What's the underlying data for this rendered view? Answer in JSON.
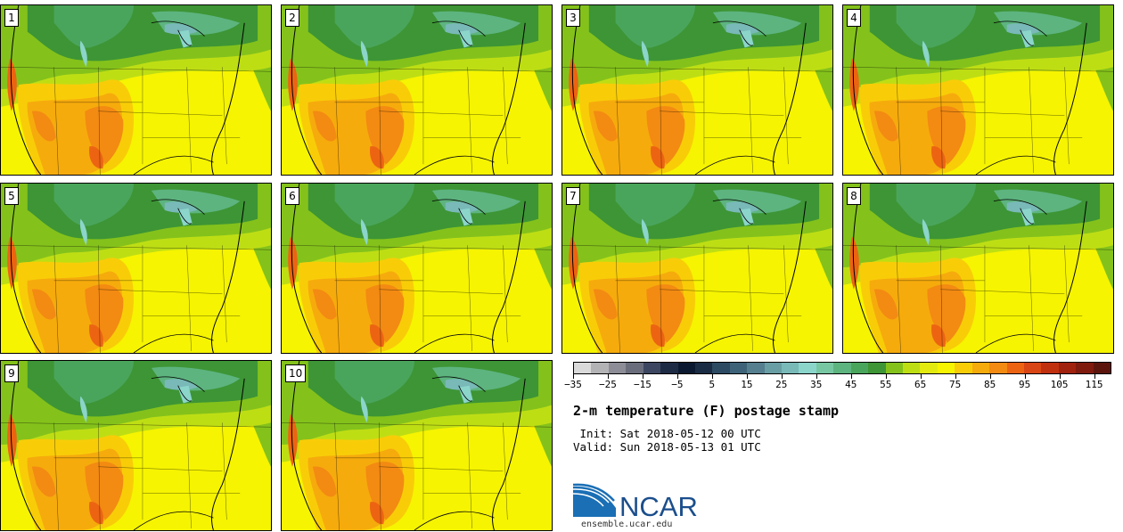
{
  "panels": [
    {
      "label": "1"
    },
    {
      "label": "2"
    },
    {
      "label": "3"
    },
    {
      "label": "4"
    },
    {
      "label": "5"
    },
    {
      "label": "6"
    },
    {
      "label": "7"
    },
    {
      "label": "8"
    },
    {
      "label": "9"
    },
    {
      "label": "10"
    }
  ],
  "legend": {
    "colors": [
      "#dadadb",
      "#b3b3b6",
      "#8c8d96",
      "#6a6e7c",
      "#3c4660",
      "#1e2b45",
      "#0b1930",
      "#1a2c44",
      "#2d4a63",
      "#3e6378",
      "#557f8f",
      "#6a9ea5",
      "#79b9b8",
      "#8bd5cb",
      "#77c8a2",
      "#5db47f",
      "#4aa55c",
      "#3d9535",
      "#84c21b",
      "#bede14",
      "#e2ea10",
      "#f6f400",
      "#f8cd08",
      "#f6ab0c",
      "#f38a12",
      "#ec6412",
      "#d94514",
      "#c0300f",
      "#9f210e",
      "#7f1a0e",
      "#5c150c"
    ],
    "tick_labels": [
      "−35",
      "−25",
      "−15",
      "−5",
      "5",
      "15",
      "25",
      "35",
      "45",
      "55",
      "65",
      "75",
      "85",
      "95",
      "105",
      "115"
    ],
    "tick_values": [
      -35,
      -25,
      -15,
      -5,
      5,
      15,
      25,
      35,
      45,
      55,
      65,
      75,
      85,
      95,
      105,
      115
    ],
    "min": -35,
    "max": 120
  },
  "title": "2-m temperature (F) postage stamp",
  "init_line": " Init: Sat 2018-05-12 00 UTC",
  "valid_line": "Valid: Sun 2018-05-13 01 UTC",
  "logo_text": "NCAR",
  "url": "ensemble.ucar.edu"
}
